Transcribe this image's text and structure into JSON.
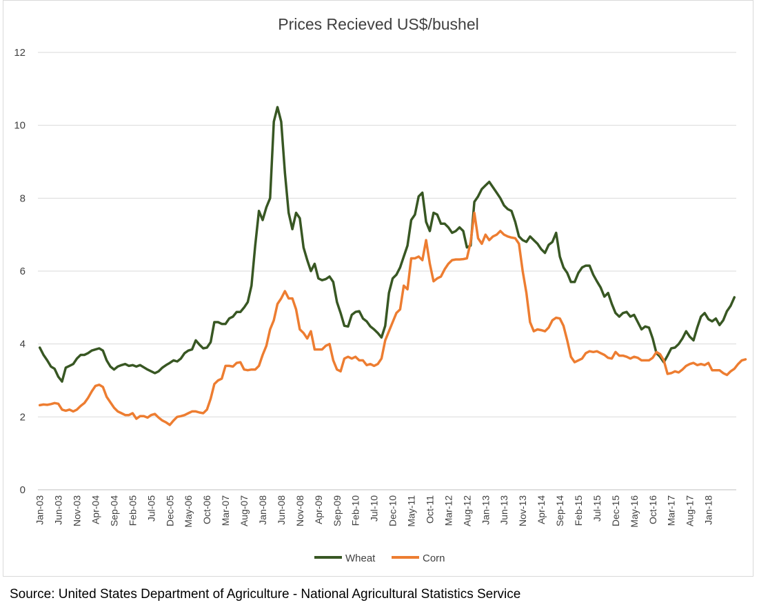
{
  "source": "Source: United States Department of Agriculture - National Agricultural Statistics Service",
  "colors": {
    "wheat": "#385723",
    "corn": "#ED7D31",
    "grid": "#d9d9d9",
    "axis_text": "#404040",
    "title_text": "#404040"
  },
  "chart_data": {
    "type": "line",
    "title": "Prices Recieved US$/bushel",
    "xlabel": "",
    "ylabel": "",
    "ylim": [
      0,
      12
    ],
    "yticks": [
      0,
      2,
      4,
      6,
      8,
      10,
      12
    ],
    "grid": true,
    "legend_position": "bottom",
    "x_start": "Jan-03",
    "x_end": "Jun-18",
    "x_tick_labels": [
      "Jan-03",
      "Jun-03",
      "Nov-03",
      "Apr-04",
      "Sep-04",
      "Feb-05",
      "Jul-05",
      "Dec-05",
      "May-06",
      "Oct-06",
      "Mar-07",
      "Aug-07",
      "Jan-08",
      "Jun-08",
      "Nov-08",
      "Apr-09",
      "Sep-09",
      "Feb-10",
      "Jul-10",
      "Dec-10",
      "May-11",
      "Oct-11",
      "Mar-12",
      "Aug-12",
      "Jan-13",
      "Jun-13",
      "Nov-13",
      "Apr-14",
      "Sep-14",
      "Feb-15",
      "Jul-15",
      "Dec-15",
      "May-16",
      "Oct-16",
      "Mar-17",
      "Aug-17",
      "Jan-18"
    ],
    "series": [
      {
        "name": "Wheat",
        "color": "#385723",
        "values": [
          3.9,
          3.7,
          3.55,
          3.38,
          3.32,
          3.1,
          2.97,
          3.35,
          3.4,
          3.45,
          3.6,
          3.7,
          3.7,
          3.75,
          3.82,
          3.85,
          3.88,
          3.82,
          3.55,
          3.38,
          3.3,
          3.38,
          3.42,
          3.45,
          3.4,
          3.42,
          3.38,
          3.42,
          3.36,
          3.3,
          3.25,
          3.2,
          3.25,
          3.35,
          3.42,
          3.48,
          3.55,
          3.52,
          3.6,
          3.75,
          3.82,
          3.85,
          4.1,
          3.98,
          3.88,
          3.9,
          4.05,
          4.6,
          4.6,
          4.55,
          4.55,
          4.7,
          4.75,
          4.88,
          4.88,
          5.0,
          5.15,
          5.6,
          6.7,
          7.65,
          7.4,
          7.75,
          8.0,
          10.1,
          10.5,
          10.1,
          8.7,
          7.6,
          7.15,
          7.6,
          7.45,
          6.65,
          6.3,
          6.0,
          6.2,
          5.8,
          5.75,
          5.78,
          5.85,
          5.7,
          5.15,
          4.85,
          4.5,
          4.48,
          4.8,
          4.88,
          4.9,
          4.7,
          4.62,
          4.48,
          4.4,
          4.3,
          4.18,
          4.5,
          5.4,
          5.8,
          5.9,
          6.1,
          6.4,
          6.7,
          7.4,
          7.55,
          8.05,
          8.15,
          7.35,
          7.1,
          7.6,
          7.55,
          7.3,
          7.3,
          7.2,
          7.05,
          7.1,
          7.2,
          7.1,
          6.65,
          6.7,
          7.9,
          8.05,
          8.25,
          8.35,
          8.45,
          8.3,
          8.15,
          8.0,
          7.8,
          7.7,
          7.65,
          7.35,
          6.95,
          6.85,
          6.8,
          6.95,
          6.85,
          6.75,
          6.6,
          6.5,
          6.72,
          6.8,
          7.05,
          6.4,
          6.1,
          5.95,
          5.7,
          5.7,
          5.95,
          6.1,
          6.15,
          6.15,
          5.9,
          5.72,
          5.55,
          5.3,
          5.4,
          5.1,
          4.85,
          4.75,
          4.85,
          4.88,
          4.75,
          4.8,
          4.6,
          4.4,
          4.48,
          4.45,
          4.15,
          3.75,
          3.65,
          3.5,
          3.68,
          3.88,
          3.9,
          4.0,
          4.15,
          4.35,
          4.2,
          4.1,
          4.45,
          4.75,
          4.85,
          4.68,
          4.62,
          4.7,
          4.52,
          4.65,
          4.9,
          5.05,
          5.28
        ]
      },
      {
        "name": "Corn",
        "color": "#ED7D31",
        "values": [
          2.32,
          2.34,
          2.33,
          2.35,
          2.38,
          2.36,
          2.2,
          2.17,
          2.2,
          2.15,
          2.2,
          2.3,
          2.38,
          2.52,
          2.7,
          2.85,
          2.88,
          2.82,
          2.55,
          2.4,
          2.25,
          2.15,
          2.1,
          2.05,
          2.05,
          2.1,
          1.95,
          2.02,
          2.02,
          1.98,
          2.05,
          2.08,
          1.98,
          1.9,
          1.85,
          1.78,
          1.9,
          2.0,
          2.02,
          2.05,
          2.1,
          2.15,
          2.15,
          2.12,
          2.1,
          2.2,
          2.5,
          2.9,
          3.0,
          3.05,
          3.4,
          3.4,
          3.38,
          3.48,
          3.5,
          3.3,
          3.28,
          3.3,
          3.3,
          3.4,
          3.7,
          3.95,
          4.4,
          4.65,
          5.1,
          5.25,
          5.45,
          5.25,
          5.25,
          4.95,
          4.4,
          4.3,
          4.15,
          4.35,
          3.85,
          3.85,
          3.85,
          3.95,
          4.0,
          3.55,
          3.3,
          3.25,
          3.6,
          3.65,
          3.6,
          3.65,
          3.55,
          3.55,
          3.42,
          3.45,
          3.4,
          3.45,
          3.6,
          4.1,
          4.35,
          4.6,
          4.85,
          4.95,
          5.6,
          5.5,
          6.35,
          6.35,
          6.4,
          6.3,
          6.85,
          6.2,
          5.72,
          5.8,
          5.85,
          6.05,
          6.2,
          6.3,
          6.32,
          6.32,
          6.33,
          6.35,
          6.8,
          7.6,
          6.9,
          6.75,
          7.0,
          6.85,
          6.95,
          7.0,
          7.1,
          7.0,
          6.95,
          6.92,
          6.9,
          6.75,
          6.0,
          5.4,
          4.6,
          4.35,
          4.4,
          4.38,
          4.35,
          4.45,
          4.65,
          4.72,
          4.7,
          4.5,
          4.1,
          3.65,
          3.5,
          3.55,
          3.6,
          3.75,
          3.8,
          3.78,
          3.8,
          3.75,
          3.7,
          3.62,
          3.6,
          3.78,
          3.68,
          3.68,
          3.65,
          3.6,
          3.65,
          3.62,
          3.55,
          3.55,
          3.55,
          3.62,
          3.78,
          3.72,
          3.55,
          3.18,
          3.2,
          3.25,
          3.22,
          3.3,
          3.4,
          3.45,
          3.48,
          3.42,
          3.45,
          3.42,
          3.48,
          3.28,
          3.28,
          3.28,
          3.2,
          3.15,
          3.25,
          3.32,
          3.45,
          3.55,
          3.58
        ]
      }
    ]
  }
}
